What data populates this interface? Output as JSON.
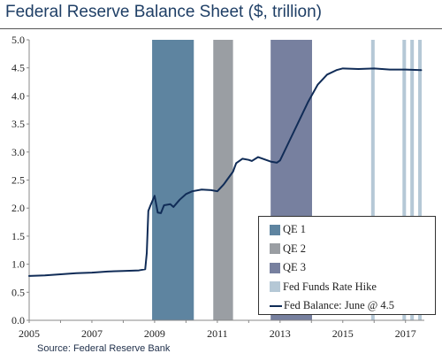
{
  "chart_data": {
    "type": "line",
    "title": "Federal Reserve Balance Sheet ($, trillion)",
    "source": "Source: Federal Reserve Bank",
    "xlabel": "",
    "ylabel": "",
    "xlim": [
      2005,
      2017.6
    ],
    "ylim": [
      0,
      5
    ],
    "x_ticks": [
      "2005",
      "2007",
      "2009",
      "2011",
      "2013",
      "2015",
      "2017"
    ],
    "y_ticks": [
      "0.0",
      "0.5",
      "1.0",
      "1.5",
      "2.0",
      "2.5",
      "3.0",
      "3.5",
      "4.0",
      "4.5",
      "5.0"
    ],
    "grid": false,
    "legend_position": "bottom-right",
    "series": [
      {
        "name": "Fed Balance: June @ 4.5",
        "color": "#102c57",
        "x": [
          2005.0,
          2005.5,
          2006.0,
          2006.5,
          2007.0,
          2007.5,
          2008.0,
          2008.5,
          2008.7,
          2008.75,
          2008.8,
          2008.87,
          2009.0,
          2009.1,
          2009.2,
          2009.3,
          2009.5,
          2009.6,
          2009.8,
          2010.0,
          2010.2,
          2010.5,
          2010.8,
          2011.0,
          2011.2,
          2011.5,
          2011.6,
          2011.8,
          2012.0,
          2012.1,
          2012.3,
          2012.5,
          2012.7,
          2012.9,
          2013.0,
          2013.3,
          2013.6,
          2013.9,
          2014.2,
          2014.5,
          2014.8,
          2015.0,
          2015.5,
          2016.0,
          2016.5,
          2017.0,
          2017.5
        ],
        "values": [
          0.79,
          0.8,
          0.82,
          0.84,
          0.85,
          0.87,
          0.88,
          0.89,
          0.91,
          1.2,
          1.95,
          2.05,
          2.22,
          1.92,
          1.91,
          2.05,
          2.07,
          2.02,
          2.15,
          2.25,
          2.3,
          2.33,
          2.32,
          2.3,
          2.42,
          2.65,
          2.8,
          2.88,
          2.86,
          2.84,
          2.91,
          2.87,
          2.83,
          2.81,
          2.85,
          3.2,
          3.55,
          3.9,
          4.2,
          4.38,
          4.46,
          4.49,
          4.48,
          4.49,
          4.47,
          4.47,
          4.46
        ]
      }
    ],
    "shaded_periods": [
      {
        "name": "QE 1",
        "color": "#5e84a0",
        "start": 2008.92,
        "end": 2010.25
      },
      {
        "name": "QE 2",
        "color": "#9a9ea3",
        "start": 2010.87,
        "end": 2011.5
      },
      {
        "name": "QE 3",
        "color": "#77809f",
        "start": 2012.7,
        "end": 2014.02
      }
    ],
    "rate_hikes": {
      "name": "Fed Funds Rate Hike",
      "color": "#b5c8d6",
      "dates": [
        2015.96,
        2016.96,
        2017.21,
        2017.46
      ]
    }
  }
}
